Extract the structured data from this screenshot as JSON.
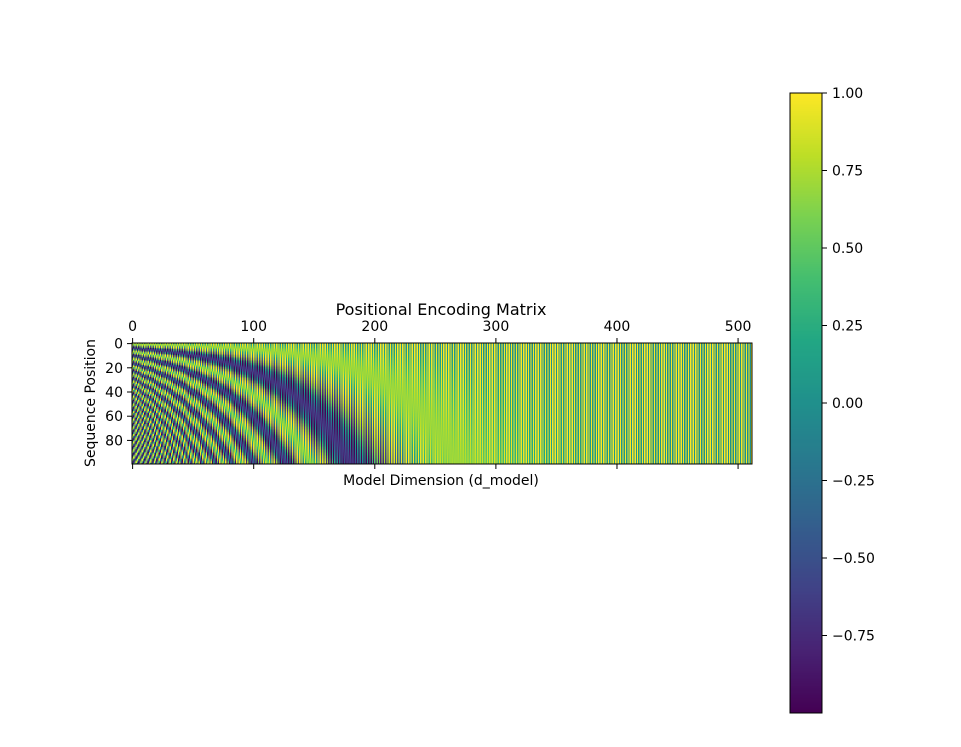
{
  "chart_data": {
    "type": "heatmap",
    "title": "Positional Encoding Matrix",
    "xlabel": "Model Dimension (d_model)",
    "ylabel": "Sequence Position",
    "x_range": [
      0,
      512
    ],
    "y_range": [
      0,
      100
    ],
    "xticks": [
      0,
      100,
      200,
      300,
      400,
      500
    ],
    "xtick_labels": [
      "0",
      "100",
      "200",
      "300",
      "400",
      "500"
    ],
    "xticks_position": "top",
    "yticks": [
      0,
      20,
      40,
      60,
      80
    ],
    "ytick_labels": [
      "0",
      "20",
      "40",
      "60",
      "80"
    ],
    "colormap": "viridis",
    "colorbar": {
      "range": [
        -1.0,
        1.0
      ],
      "ticks": [
        1.0,
        0.75,
        0.5,
        0.25,
        0.0,
        -0.25,
        -0.5,
        -0.75
      ],
      "tick_labels": [
        "1.00",
        "0.75",
        "0.50",
        "0.25",
        "0.00",
        "−0.25",
        "−0.50",
        "−0.75"
      ]
    },
    "matrix": {
      "rows": 100,
      "columns": 512,
      "formula": "sin/cos positional encoding"
    },
    "grid": false
  }
}
